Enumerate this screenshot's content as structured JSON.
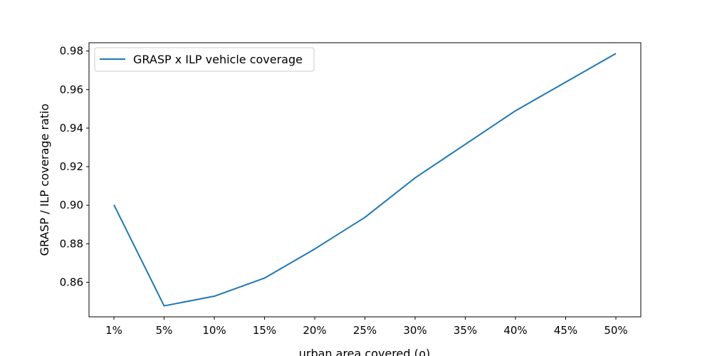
{
  "chart_data": {
    "type": "line",
    "categories": [
      "1%",
      "5%",
      "10%",
      "15%",
      "20%",
      "25%",
      "30%",
      "35%",
      "40%",
      "45%",
      "50%"
    ],
    "series": [
      {
        "name": "GRASP x ILP vehicle coverage",
        "x": [
          "1%",
          "5%",
          "10%",
          "15%",
          "20%",
          "25%",
          "30%",
          "40%",
          "50%"
        ],
        "values": [
          0.9002,
          0.8478,
          0.8528,
          0.8622,
          0.8773,
          0.8937,
          0.9142,
          0.949,
          0.9787
        ],
        "color": "#1f77b4"
      }
    ],
    "ylabel": "GRASP / ILP coverage ratio",
    "xlabel": "urban area covered (ρ)",
    "yticks": [
      "0.86",
      "0.88",
      "0.90",
      "0.92",
      "0.94",
      "0.96",
      "0.98"
    ],
    "ylim": [
      0.8421,
      0.9843
    ],
    "legend": "top-left",
    "grid": false
  }
}
